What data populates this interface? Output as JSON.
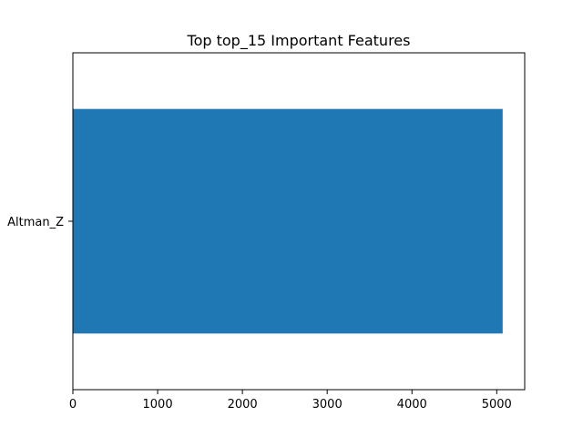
{
  "chart_data": {
    "type": "bar",
    "orientation": "horizontal",
    "title": "Top top_15 Important Features",
    "xlabel": "",
    "ylabel": "",
    "categories": [
      "Altman_Z"
    ],
    "values": [
      5070
    ],
    "xlim": [
      0,
      5330
    ],
    "xticks": [
      0,
      1000,
      2000,
      3000,
      4000,
      5000
    ],
    "grid": false,
    "bar_color": "#1f77b4"
  }
}
